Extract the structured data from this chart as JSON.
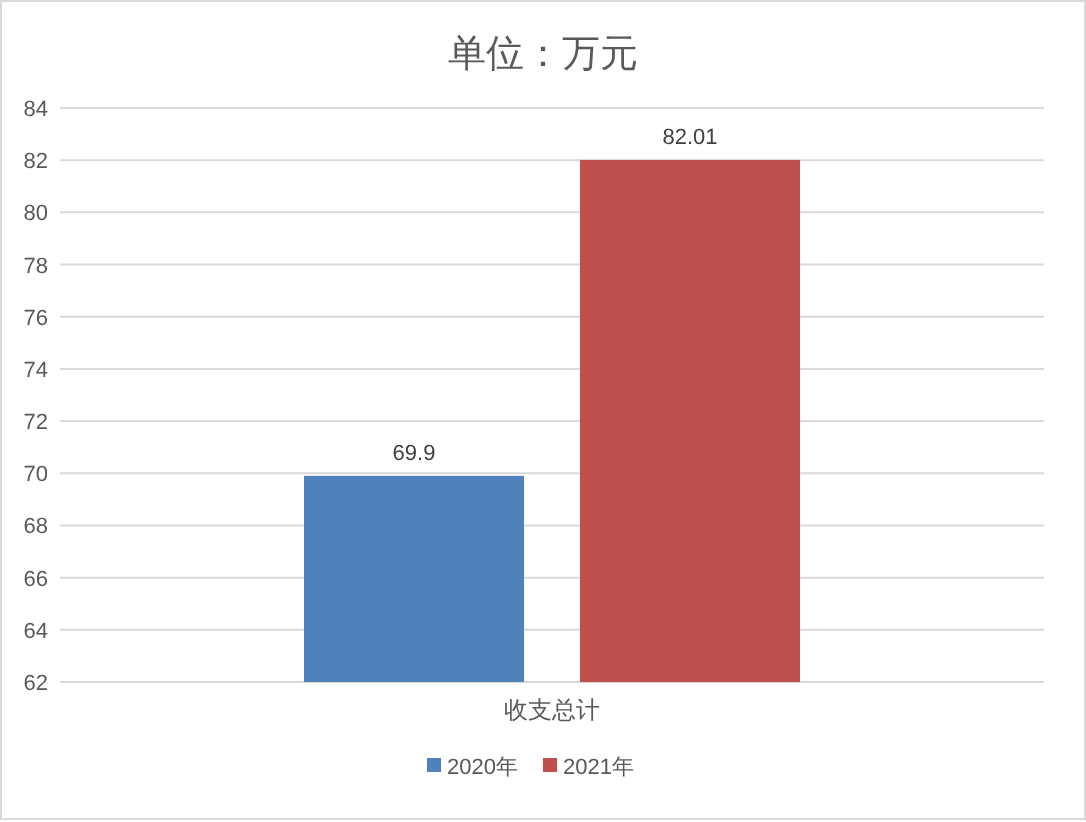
{
  "chart_data": {
    "type": "bar",
    "title": "单位：万元",
    "categories": [
      "收支总计"
    ],
    "series": [
      {
        "name": "2020年",
        "color": "#4f81bd",
        "values": [
          69.9
        ]
      },
      {
        "name": "2021年",
        "color": "#c0504d",
        "values": [
          82.01
        ]
      }
    ],
    "ylim": [
      62,
      84
    ],
    "yticks": [
      62,
      64,
      66,
      68,
      70,
      72,
      74,
      76,
      78,
      80,
      82,
      84
    ],
    "grid": "y",
    "legend": "bottom",
    "data_labels": true
  }
}
